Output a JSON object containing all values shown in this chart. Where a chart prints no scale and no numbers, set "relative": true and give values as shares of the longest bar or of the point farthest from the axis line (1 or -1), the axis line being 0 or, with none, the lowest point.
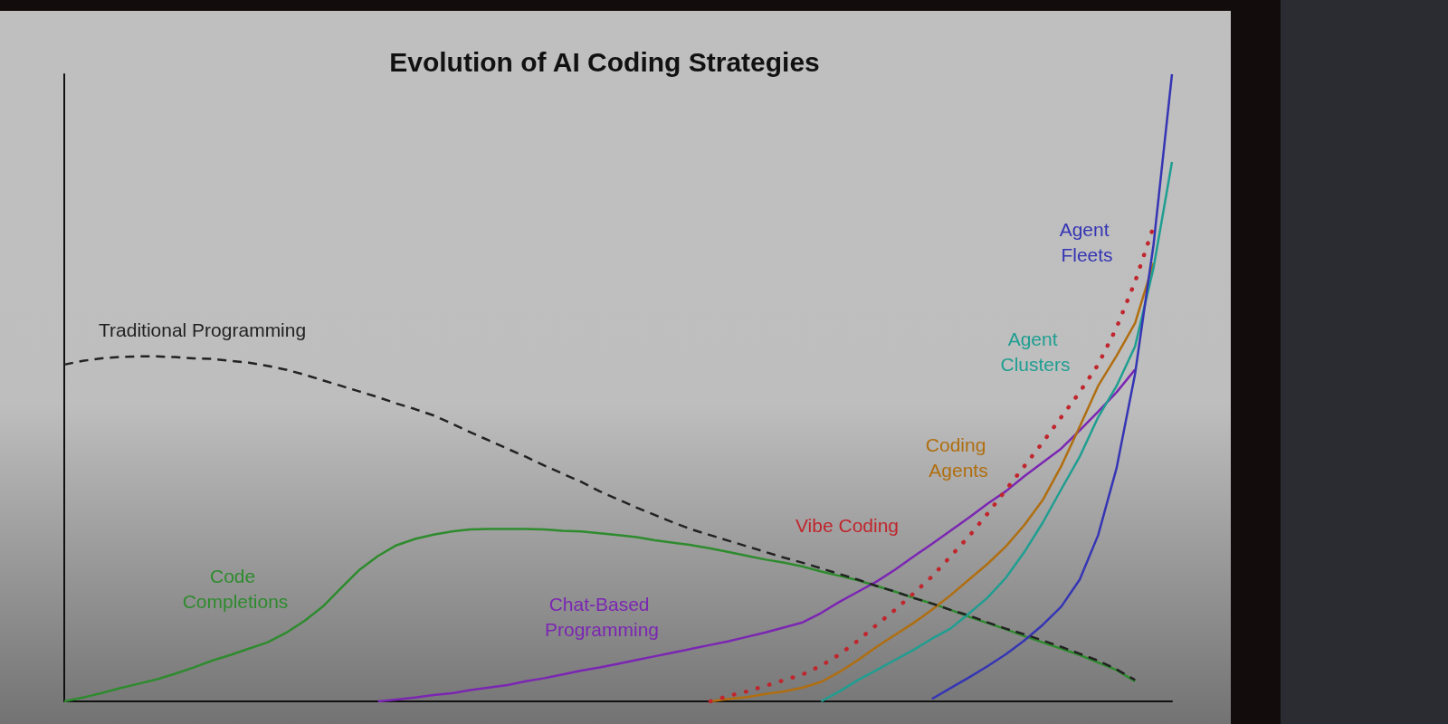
{
  "chart_data": {
    "type": "line",
    "title": "Evolution of AI Coding Strategies",
    "relative": true,
    "grid": false,
    "legend": false,
    "marker": "none",
    "categories": [
      null,
      null,
      null,
      null,
      null,
      null,
      null,
      null,
      null,
      null,
      null,
      null,
      null,
      null,
      null,
      null,
      null,
      null,
      null,
      null,
      null,
      null,
      null,
      null,
      null,
      null,
      null,
      null,
      null,
      null,
      null,
      null,
      null,
      null,
      null,
      null,
      null,
      null,
      null,
      null,
      null,
      null,
      null,
      null,
      null,
      null,
      null,
      null,
      null,
      null,
      null,
      null,
      null,
      null,
      null,
      null,
      null,
      null,
      null,
      null,
      null
    ],
    "series": [
      {
        "name": "Traditional Programming",
        "color": "#222222",
        "line_style": "dashed",
        "values": [
          0.537,
          0.543,
          0.547,
          0.549,
          0.55,
          0.55,
          0.549,
          0.547,
          0.546,
          0.543,
          0.54,
          0.535,
          0.529,
          0.521,
          0.512,
          0.503,
          0.494,
          0.485,
          0.475,
          0.466,
          0.456,
          0.443,
          0.429,
          0.416,
          0.403,
          0.39,
          0.376,
          0.363,
          0.35,
          0.335,
          0.322,
          0.309,
          0.297,
          0.285,
          0.274,
          0.265,
          0.256,
          0.247,
          0.238,
          0.229,
          0.221,
          0.212,
          0.203,
          0.194,
          0.184,
          0.175,
          0.165,
          0.156,
          0.146,
          0.137,
          0.126,
          0.116,
          0.107,
          0.097,
          0.087,
          0.076,
          0.065,
          0.051,
          0.034,
          null,
          null
        ]
      },
      {
        "name": "Code Completions",
        "color": "#2e8b2e",
        "line_style": "solid",
        "values": [
          0,
          0.006,
          0.013,
          0.021,
          0.028,
          0.035,
          0.044,
          0.054,
          0.065,
          0.074,
          0.084,
          0.094,
          0.109,
          0.128,
          0.151,
          0.181,
          0.21,
          0.232,
          0.249,
          0.259,
          0.266,
          0.271,
          0.274,
          0.275,
          0.275,
          0.275,
          0.274,
          0.272,
          0.271,
          0.268,
          0.265,
          0.262,
          0.257,
          0.253,
          0.249,
          0.244,
          0.238,
          0.232,
          0.226,
          0.221,
          0.215,
          0.207,
          0.2,
          0.193,
          0.184,
          0.175,
          0.165,
          0.156,
          0.146,
          0.135,
          0.125,
          0.115,
          0.104,
          0.094,
          0.084,
          0.074,
          0.062,
          0.05,
          0.032,
          null,
          null
        ]
      },
      {
        "name": "Chat-Based Programming",
        "color": "#7b26b3",
        "line_style": "solid",
        "values": [
          null,
          null,
          null,
          null,
          null,
          null,
          null,
          null,
          null,
          null,
          null,
          null,
          null,
          null,
          null,
          null,
          null,
          0,
          0.003,
          0.006,
          0.01,
          0.013,
          0.018,
          0.022,
          0.026,
          0.032,
          0.037,
          0.043,
          0.049,
          0.054,
          0.06,
          0.066,
          0.072,
          0.078,
          0.084,
          0.09,
          0.096,
          0.103,
          0.11,
          0.118,
          0.126,
          0.141,
          0.159,
          0.175,
          0.191,
          0.21,
          0.231,
          0.251,
          0.272,
          0.293,
          0.315,
          0.335,
          0.359,
          0.381,
          0.403,
          0.432,
          0.462,
          0.493,
          0.529,
          null,
          null
        ]
      },
      {
        "name": "Vibe Coding",
        "color": "#c0262d",
        "line_style": "dotted",
        "values": [
          null,
          null,
          null,
          null,
          null,
          null,
          null,
          null,
          null,
          null,
          null,
          null,
          null,
          null,
          null,
          null,
          null,
          null,
          null,
          null,
          null,
          null,
          null,
          null,
          null,
          null,
          null,
          null,
          null,
          null,
          null,
          null,
          null,
          null,
          null,
          0,
          0.009,
          0.016,
          0.025,
          0.034,
          0.043,
          0.057,
          0.075,
          0.097,
          0.122,
          0.146,
          0.172,
          0.199,
          0.231,
          0.263,
          0.299,
          0.337,
          0.375,
          0.413,
          0.453,
          0.493,
          0.537,
          0.596,
          0.669,
          0.757,
          null
        ]
      },
      {
        "name": "Coding Agents",
        "color": "#b06e10",
        "line_style": "solid",
        "values": [
          null,
          null,
          null,
          null,
          null,
          null,
          null,
          null,
          null,
          null,
          null,
          null,
          null,
          null,
          null,
          null,
          null,
          null,
          null,
          null,
          null,
          null,
          null,
          null,
          null,
          null,
          null,
          null,
          null,
          null,
          null,
          null,
          null,
          null,
          null,
          0,
          0.004,
          0.007,
          0.012,
          0.016,
          0.022,
          0.031,
          0.047,
          0.066,
          0.087,
          0.106,
          0.125,
          0.146,
          0.169,
          0.194,
          0.219,
          0.247,
          0.281,
          0.321,
          0.375,
          0.438,
          0.503,
          0.551,
          0.603,
          0.699,
          null
        ]
      },
      {
        "name": "Agent Clusters",
        "color": "#1f9e91",
        "line_style": "solid",
        "values": [
          null,
          null,
          null,
          null,
          null,
          null,
          null,
          null,
          null,
          null,
          null,
          null,
          null,
          null,
          null,
          null,
          null,
          null,
          null,
          null,
          null,
          null,
          null,
          null,
          null,
          null,
          null,
          null,
          null,
          null,
          null,
          null,
          null,
          null,
          null,
          null,
          null,
          null,
          null,
          null,
          null,
          0,
          0.016,
          0.034,
          0.05,
          0.066,
          0.082,
          0.1,
          0.116,
          0.14,
          0.165,
          0.197,
          0.238,
          0.285,
          0.338,
          0.39,
          0.453,
          0.503,
          0.566,
          0.691,
          0.86
        ]
      },
      {
        "name": "Agent Fleets",
        "color": "#3535b5",
        "line_style": "solid",
        "values": [
          null,
          null,
          null,
          null,
          null,
          null,
          null,
          null,
          null,
          null,
          null,
          null,
          null,
          null,
          null,
          null,
          null,
          null,
          null,
          null,
          null,
          null,
          null,
          null,
          null,
          null,
          null,
          null,
          null,
          null,
          null,
          null,
          null,
          null,
          null,
          null,
          null,
          null,
          null,
          null,
          null,
          null,
          null,
          null,
          null,
          null,
          null,
          0.004,
          0.021,
          0.038,
          0.056,
          0.075,
          0.097,
          0.122,
          0.151,
          0.194,
          0.265,
          0.372,
          0.522,
          0.728,
          1
        ]
      }
    ]
  }
}
